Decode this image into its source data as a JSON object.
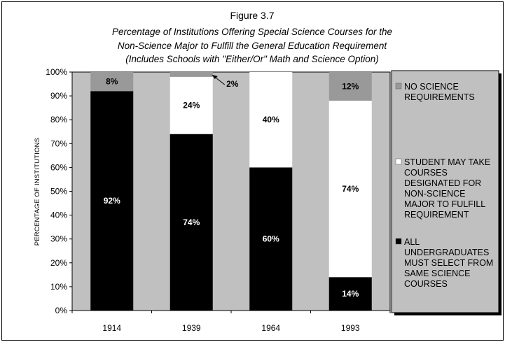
{
  "chart_data": {
    "type": "bar",
    "stacked": true,
    "title": "Figure 3.7",
    "subtitle": [
      "Percentage of Institutions Offering Special Science Courses for the",
      "Non-Science Major to Fulfill the General Education Requirement",
      "(Includes Schools with \"Either/Or\" Math and Science Option)"
    ],
    "xlabel": "",
    "ylabel": "PERCENTAGE OF INSTITUTIONS",
    "ylim": [
      0,
      100
    ],
    "yticks": [
      "0%",
      "10%",
      "20%",
      "30%",
      "40%",
      "50%",
      "60%",
      "70%",
      "80%",
      "90%",
      "100%"
    ],
    "categories": [
      "1914",
      "1939",
      "1964",
      "1993"
    ],
    "series": [
      {
        "name": "ALL UNDERGRADUATES MUST SELECT FROM SAME SCIENCE COURSES",
        "legend_lines": [
          "ALL",
          "UNDERGRADUATES",
          "MUST SELECT FROM",
          "SAME SCIENCE",
          "COURSES"
        ],
        "color": "#000000",
        "label_color": "#ffffff",
        "values": [
          92,
          74,
          60,
          14
        ],
        "labels": [
          "92%",
          "74%",
          "60%",
          "14%"
        ]
      },
      {
        "name": "STUDENT MAY TAKE COURSES DESIGNATED FOR NON-SCIENCE MAJOR TO FULFILL REQUIREMENT",
        "legend_lines": [
          "STUDENT MAY TAKE",
          "COURSES",
          "DESIGNATED FOR",
          "NON-SCIENCE",
          "MAJOR TO FULFILL",
          "REQUIREMENT"
        ],
        "color": "#ffffff",
        "label_color": "#000000",
        "values": [
          0,
          24,
          40,
          74
        ],
        "labels": [
          "",
          "24%",
          "40%",
          "74%"
        ]
      },
      {
        "name": "NO SCIENCE REQUIREMENTS",
        "legend_lines": [
          "NO SCIENCE",
          "REQUIREMENTS"
        ],
        "color": "#999999",
        "label_color": "#000000",
        "values": [
          8,
          2,
          0,
          12
        ],
        "labels": [
          "8%",
          "2%",
          "",
          "12%"
        ]
      }
    ],
    "plot_background": "#c0c0c0",
    "grid": false,
    "legend_position": "right"
  }
}
